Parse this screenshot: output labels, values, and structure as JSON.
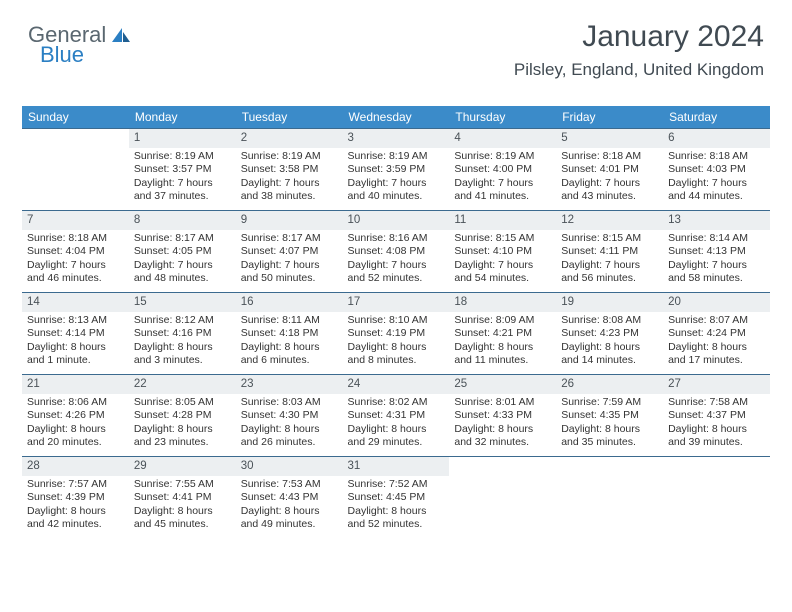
{
  "logo": {
    "text1": "General",
    "text2": "Blue"
  },
  "title": "January 2024",
  "location": "Pilsley, England, United Kingdom",
  "colors": {
    "header_bg": "#3b8bc9",
    "header_fg": "#ffffff",
    "border": "#3b6a8f",
    "daynum_bg": "#eceff1",
    "text": "#333333",
    "title_color": "#404a52"
  },
  "weekdays": [
    "Sunday",
    "Monday",
    "Tuesday",
    "Wednesday",
    "Thursday",
    "Friday",
    "Saturday"
  ],
  "weeks": [
    [
      {
        "n": "",
        "empty": true,
        "l": [
          "",
          "",
          "",
          ""
        ]
      },
      {
        "n": "1",
        "l": [
          "Sunrise: 8:19 AM",
          "Sunset: 3:57 PM",
          "Daylight: 7 hours",
          "and 37 minutes."
        ]
      },
      {
        "n": "2",
        "l": [
          "Sunrise: 8:19 AM",
          "Sunset: 3:58 PM",
          "Daylight: 7 hours",
          "and 38 minutes."
        ]
      },
      {
        "n": "3",
        "l": [
          "Sunrise: 8:19 AM",
          "Sunset: 3:59 PM",
          "Daylight: 7 hours",
          "and 40 minutes."
        ]
      },
      {
        "n": "4",
        "l": [
          "Sunrise: 8:19 AM",
          "Sunset: 4:00 PM",
          "Daylight: 7 hours",
          "and 41 minutes."
        ]
      },
      {
        "n": "5",
        "l": [
          "Sunrise: 8:18 AM",
          "Sunset: 4:01 PM",
          "Daylight: 7 hours",
          "and 43 minutes."
        ]
      },
      {
        "n": "6",
        "l": [
          "Sunrise: 8:18 AM",
          "Sunset: 4:03 PM",
          "Daylight: 7 hours",
          "and 44 minutes."
        ]
      }
    ],
    [
      {
        "n": "7",
        "l": [
          "Sunrise: 8:18 AM",
          "Sunset: 4:04 PM",
          "Daylight: 7 hours",
          "and 46 minutes."
        ]
      },
      {
        "n": "8",
        "l": [
          "Sunrise: 8:17 AM",
          "Sunset: 4:05 PM",
          "Daylight: 7 hours",
          "and 48 minutes."
        ]
      },
      {
        "n": "9",
        "l": [
          "Sunrise: 8:17 AM",
          "Sunset: 4:07 PM",
          "Daylight: 7 hours",
          "and 50 minutes."
        ]
      },
      {
        "n": "10",
        "l": [
          "Sunrise: 8:16 AM",
          "Sunset: 4:08 PM",
          "Daylight: 7 hours",
          "and 52 minutes."
        ]
      },
      {
        "n": "11",
        "l": [
          "Sunrise: 8:15 AM",
          "Sunset: 4:10 PM",
          "Daylight: 7 hours",
          "and 54 minutes."
        ]
      },
      {
        "n": "12",
        "l": [
          "Sunrise: 8:15 AM",
          "Sunset: 4:11 PM",
          "Daylight: 7 hours",
          "and 56 minutes."
        ]
      },
      {
        "n": "13",
        "l": [
          "Sunrise: 8:14 AM",
          "Sunset: 4:13 PM",
          "Daylight: 7 hours",
          "and 58 minutes."
        ]
      }
    ],
    [
      {
        "n": "14",
        "l": [
          "Sunrise: 8:13 AM",
          "Sunset: 4:14 PM",
          "Daylight: 8 hours",
          "and 1 minute."
        ]
      },
      {
        "n": "15",
        "l": [
          "Sunrise: 8:12 AM",
          "Sunset: 4:16 PM",
          "Daylight: 8 hours",
          "and 3 minutes."
        ]
      },
      {
        "n": "16",
        "l": [
          "Sunrise: 8:11 AM",
          "Sunset: 4:18 PM",
          "Daylight: 8 hours",
          "and 6 minutes."
        ]
      },
      {
        "n": "17",
        "l": [
          "Sunrise: 8:10 AM",
          "Sunset: 4:19 PM",
          "Daylight: 8 hours",
          "and 8 minutes."
        ]
      },
      {
        "n": "18",
        "l": [
          "Sunrise: 8:09 AM",
          "Sunset: 4:21 PM",
          "Daylight: 8 hours",
          "and 11 minutes."
        ]
      },
      {
        "n": "19",
        "l": [
          "Sunrise: 8:08 AM",
          "Sunset: 4:23 PM",
          "Daylight: 8 hours",
          "and 14 minutes."
        ]
      },
      {
        "n": "20",
        "l": [
          "Sunrise: 8:07 AM",
          "Sunset: 4:24 PM",
          "Daylight: 8 hours",
          "and 17 minutes."
        ]
      }
    ],
    [
      {
        "n": "21",
        "l": [
          "Sunrise: 8:06 AM",
          "Sunset: 4:26 PM",
          "Daylight: 8 hours",
          "and 20 minutes."
        ]
      },
      {
        "n": "22",
        "l": [
          "Sunrise: 8:05 AM",
          "Sunset: 4:28 PM",
          "Daylight: 8 hours",
          "and 23 minutes."
        ]
      },
      {
        "n": "23",
        "l": [
          "Sunrise: 8:03 AM",
          "Sunset: 4:30 PM",
          "Daylight: 8 hours",
          "and 26 minutes."
        ]
      },
      {
        "n": "24",
        "l": [
          "Sunrise: 8:02 AM",
          "Sunset: 4:31 PM",
          "Daylight: 8 hours",
          "and 29 minutes."
        ]
      },
      {
        "n": "25",
        "l": [
          "Sunrise: 8:01 AM",
          "Sunset: 4:33 PM",
          "Daylight: 8 hours",
          "and 32 minutes."
        ]
      },
      {
        "n": "26",
        "l": [
          "Sunrise: 7:59 AM",
          "Sunset: 4:35 PM",
          "Daylight: 8 hours",
          "and 35 minutes."
        ]
      },
      {
        "n": "27",
        "l": [
          "Sunrise: 7:58 AM",
          "Sunset: 4:37 PM",
          "Daylight: 8 hours",
          "and 39 minutes."
        ]
      }
    ],
    [
      {
        "n": "28",
        "l": [
          "Sunrise: 7:57 AM",
          "Sunset: 4:39 PM",
          "Daylight: 8 hours",
          "and 42 minutes."
        ]
      },
      {
        "n": "29",
        "l": [
          "Sunrise: 7:55 AM",
          "Sunset: 4:41 PM",
          "Daylight: 8 hours",
          "and 45 minutes."
        ]
      },
      {
        "n": "30",
        "l": [
          "Sunrise: 7:53 AM",
          "Sunset: 4:43 PM",
          "Daylight: 8 hours",
          "and 49 minutes."
        ]
      },
      {
        "n": "31",
        "l": [
          "Sunrise: 7:52 AM",
          "Sunset: 4:45 PM",
          "Daylight: 8 hours",
          "and 52 minutes."
        ]
      },
      {
        "n": "",
        "empty": true,
        "l": [
          "",
          "",
          "",
          ""
        ]
      },
      {
        "n": "",
        "empty": true,
        "l": [
          "",
          "",
          "",
          ""
        ]
      },
      {
        "n": "",
        "empty": true,
        "l": [
          "",
          "",
          "",
          ""
        ]
      }
    ]
  ]
}
